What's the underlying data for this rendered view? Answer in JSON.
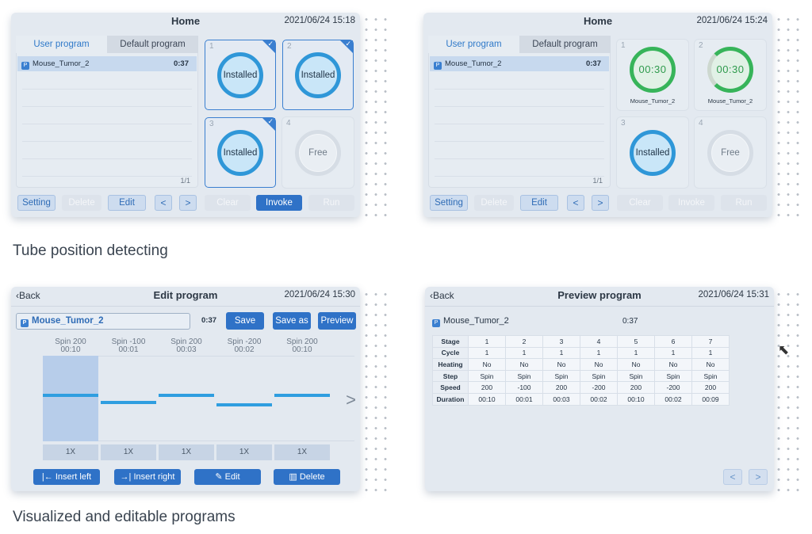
{
  "home1": {
    "title": "Home",
    "datetime": "2021/06/24 15:18",
    "tabs": [
      "User program",
      "Default program"
    ],
    "program": {
      "name": "Mouse_Tumor_2",
      "duration": "0:37"
    },
    "page": "1/1",
    "slots": [
      {
        "num": "1",
        "status": "Installed",
        "checked": true
      },
      {
        "num": "2",
        "status": "Installed",
        "checked": true
      },
      {
        "num": "3",
        "status": "Installed",
        "checked": true
      },
      {
        "num": "4",
        "status": "Free",
        "checked": false
      }
    ],
    "buttons": {
      "setting": "Setting",
      "delete": "Delete",
      "edit": "Edit",
      "prev": "<",
      "next": ">",
      "clear": "Clear",
      "invoke": "Invoke",
      "run": "Run"
    }
  },
  "home2": {
    "title": "Home",
    "datetime": "2021/06/24 15:24",
    "tabs": [
      "User program",
      "Default program"
    ],
    "program": {
      "name": "Mouse_Tumor_2",
      "duration": "0:37"
    },
    "page": "1/1",
    "slots": [
      {
        "num": "1",
        "status": "00:30",
        "label": "Mouse_Tumor_2"
      },
      {
        "num": "2",
        "status": "00:30",
        "label": "Mouse_Tumor_2"
      },
      {
        "num": "3",
        "status": "Installed"
      },
      {
        "num": "4",
        "status": "Free"
      }
    ],
    "buttons": {
      "setting": "Setting",
      "delete": "Delete",
      "edit": "Edit",
      "prev": "<",
      "next": ">",
      "clear": "Clear",
      "invoke": "Invoke",
      "run": "Run"
    }
  },
  "caption1": "Tube position detecting",
  "caption2": "Visualized and editable programs",
  "edit": {
    "back": "Back",
    "title": "Edit program",
    "datetime": "2021/06/24 15:30",
    "name": "Mouse_Tumor_2",
    "duration": "0:37",
    "save": "Save",
    "save_as": "Save as",
    "preview": "Preview",
    "stages": [
      {
        "label": "Spin 200",
        "time": "00:10",
        "repeat": "1X",
        "speed": 200
      },
      {
        "label": "Spin -100",
        "time": "00:01",
        "repeat": "1X",
        "speed": -100
      },
      {
        "label": "Spin 200",
        "time": "00:03",
        "repeat": "1X",
        "speed": 200
      },
      {
        "label": "Spin -200",
        "time": "00:02",
        "repeat": "1X",
        "speed": -200
      },
      {
        "label": "Spin 200",
        "time": "00:10",
        "repeat": "1X",
        "speed": 200
      }
    ],
    "insert_left": "Insert left",
    "insert_right": "Insert right",
    "edit_btn": "Edit",
    "delete_btn": "Delete",
    "next_arrow": ">"
  },
  "preview": {
    "back": "Back",
    "title": "Preview program",
    "datetime": "2021/06/24 15:31",
    "name": "Mouse_Tumor_2",
    "duration": "0:37",
    "rows": [
      {
        "header": "Stage",
        "values": [
          "1",
          "2",
          "3",
          "4",
          "5",
          "6",
          "7"
        ]
      },
      {
        "header": "Cycle",
        "values": [
          "1",
          "1",
          "1",
          "1",
          "1",
          "1",
          "1"
        ]
      },
      {
        "header": "Heating",
        "values": [
          "No",
          "No",
          "No",
          "No",
          "No",
          "No",
          "No"
        ]
      },
      {
        "header": "Step",
        "values": [
          "Spin",
          "Spin",
          "Spin",
          "Spin",
          "Spin",
          "Spin",
          "Spin"
        ]
      },
      {
        "header": "Speed",
        "values": [
          "200",
          "-100",
          "200",
          "-200",
          "200",
          "-200",
          "200"
        ]
      },
      {
        "header": "Duration",
        "values": [
          "00:10",
          "00:01",
          "00:03",
          "00:02",
          "00:10",
          "00:02",
          "00:09"
        ]
      }
    ],
    "prev": "<",
    "next": ">"
  },
  "icons": {
    "program": "P",
    "check": "✓",
    "back_chevron": "‹",
    "cursor": "pointer-cursor-icon"
  },
  "colors": {
    "accent": "#2f72c7",
    "installed_ring": "#2f97d8",
    "timer_ring": "#37b45a",
    "panel_bg": "#e3e9f0"
  }
}
